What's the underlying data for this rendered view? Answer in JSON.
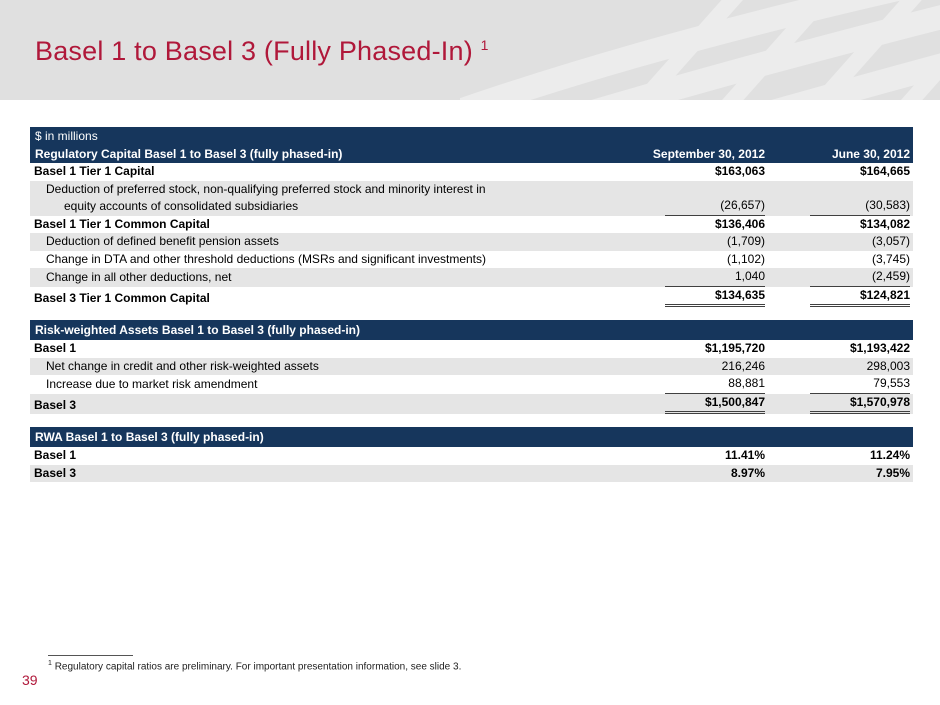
{
  "slide": {
    "title": "Basel 1 to Basel 3 (Fully Phased-In)",
    "title_superscript": "1",
    "footnote_superscript": "1",
    "footnote": "Regulatory capital ratios are preliminary. For important presentation information, see slide 3.",
    "page_number": "39"
  },
  "colors": {
    "navy_header": "#16365c",
    "title_red": "#b0183a",
    "band_gray": "#e0e0e0",
    "band_pattern_gray": "#ececec",
    "row_stripe_gray": "#e5e5e5"
  },
  "table": {
    "units_label": "$ in millions",
    "col_headers": [
      "September 30, 2012",
      "June 30, 2012"
    ],
    "sections": [
      {
        "header": "Regulatory Capital Basel 1 to Basel 3 (fully phased-in)",
        "rows": [
          {
            "label": "Basel 1 Tier 1 Capital",
            "v1": "$163,063",
            "v2": "$164,665",
            "bold": true
          },
          {
            "label": "Deduction of preferred stock, non-qualifying preferred stock and minority interest in",
            "label2": "equity accounts of consolidated subsidiaries",
            "v1": "(26,657)",
            "v2": "(30,583)",
            "indent": true,
            "stripe": true,
            "rule": "single"
          },
          {
            "label": "Basel 1 Tier 1 Common Capital",
            "v1": "$136,406",
            "v2": "$134,082",
            "bold": true
          },
          {
            "label": "Deduction of defined benefit pension assets",
            "v1": "(1,709)",
            "v2": "(3,057)",
            "indent": true,
            "stripe": true
          },
          {
            "label": "Change in DTA and other threshold deductions (MSRs and significant investments)",
            "v1": "(1,102)",
            "v2": "(3,745)",
            "indent": true
          },
          {
            "label": "Change in all other deductions, net",
            "v1": "1,040",
            "v2": "(2,459)",
            "indent": true,
            "stripe": true,
            "rule": "single"
          },
          {
            "label": "Basel 3 Tier 1 Common Capital",
            "v1": "$134,635",
            "v2": "$124,821",
            "bold": true,
            "rule": "double"
          }
        ]
      },
      {
        "header": "Risk-weighted Assets Basel 1 to Basel 3 (fully phased-in)",
        "rows": [
          {
            "label": "Basel 1",
            "v1": "$1,195,720",
            "v2": "$1,193,422",
            "bold": true
          },
          {
            "label": "Net change in credit and other risk-weighted assets",
            "v1": "216,246",
            "v2": "298,003",
            "indent": true,
            "stripe": true
          },
          {
            "label": "Increase due to market risk amendment",
            "v1": "88,881",
            "v2": "79,553",
            "indent": true,
            "rule": "single"
          },
          {
            "label": "Basel 3",
            "v1": "$1,500,847",
            "v2": "$1,570,978",
            "bold": true,
            "stripe": true,
            "rule": "double"
          }
        ]
      },
      {
        "header": "RWA Basel 1 to Basel 3 (fully phased-in)",
        "rows": [
          {
            "label": "Basel 1",
            "v1": "11.41%",
            "v2": "11.24%",
            "bold": true
          },
          {
            "label": "Basel 3",
            "v1": "8.97%",
            "v2": "7.95%",
            "bold": true,
            "stripe": true
          }
        ]
      }
    ]
  }
}
